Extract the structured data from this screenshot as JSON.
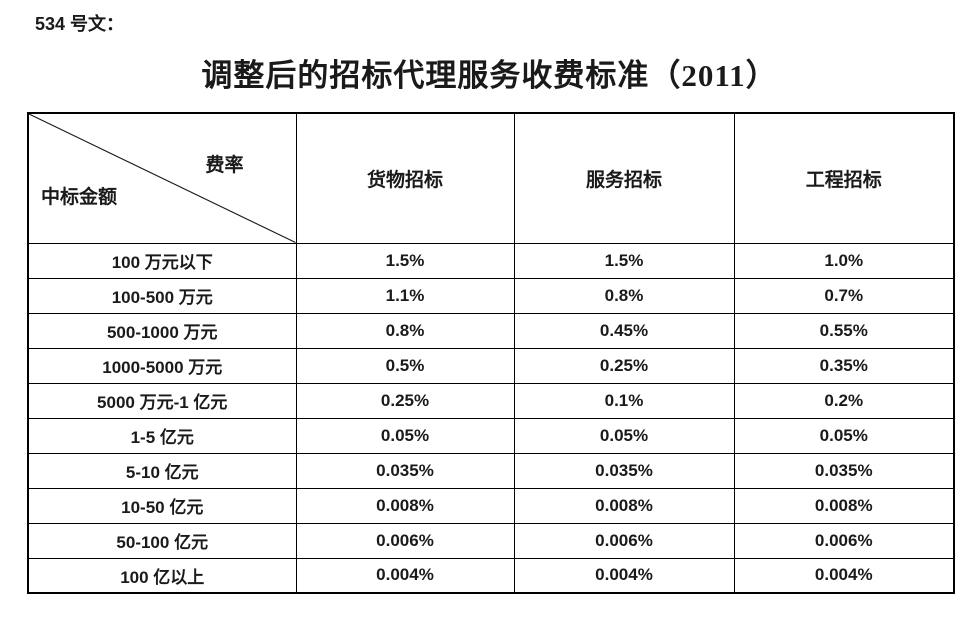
{
  "doc": {
    "reference": "534 号文：",
    "title": "调整后的招标代理服务收费标准（2011）"
  },
  "table": {
    "corner": {
      "top_right": "费率",
      "bottom_left": "中标金额"
    },
    "columns": [
      "货物招标",
      "服务招标",
      "工程招标"
    ],
    "rows": [
      {
        "label": "100 万元以下",
        "values": [
          "1.5%",
          "1.5%",
          "1.0%"
        ]
      },
      {
        "label": "100-500 万元",
        "values": [
          "1.1%",
          "0.8%",
          "0.7%"
        ]
      },
      {
        "label": "500-1000 万元",
        "values": [
          "0.8%",
          "0.45%",
          "0.55%"
        ]
      },
      {
        "label": "1000-5000 万元",
        "values": [
          "0.5%",
          "0.25%",
          "0.35%"
        ]
      },
      {
        "label": "5000 万元-1 亿元",
        "values": [
          "0.25%",
          "0.1%",
          "0.2%"
        ]
      },
      {
        "label": "1-5 亿元",
        "values": [
          "0.05%",
          "0.05%",
          "0.05%"
        ]
      },
      {
        "label": "5-10 亿元",
        "values": [
          "0.035%",
          "0.035%",
          "0.035%"
        ]
      },
      {
        "label": "10-50 亿元",
        "values": [
          "0.008%",
          "0.008%",
          "0.008%"
        ]
      },
      {
        "label": "50-100 亿元",
        "values": [
          "0.006%",
          "0.006%",
          "0.006%"
        ]
      },
      {
        "label": "100 亿以上",
        "values": [
          "0.004%",
          "0.004%",
          "0.004%"
        ]
      }
    ]
  },
  "theme": {
    "text_color": "#1a1a1a",
    "border_color": "#000000",
    "background_color": "#ffffff"
  }
}
